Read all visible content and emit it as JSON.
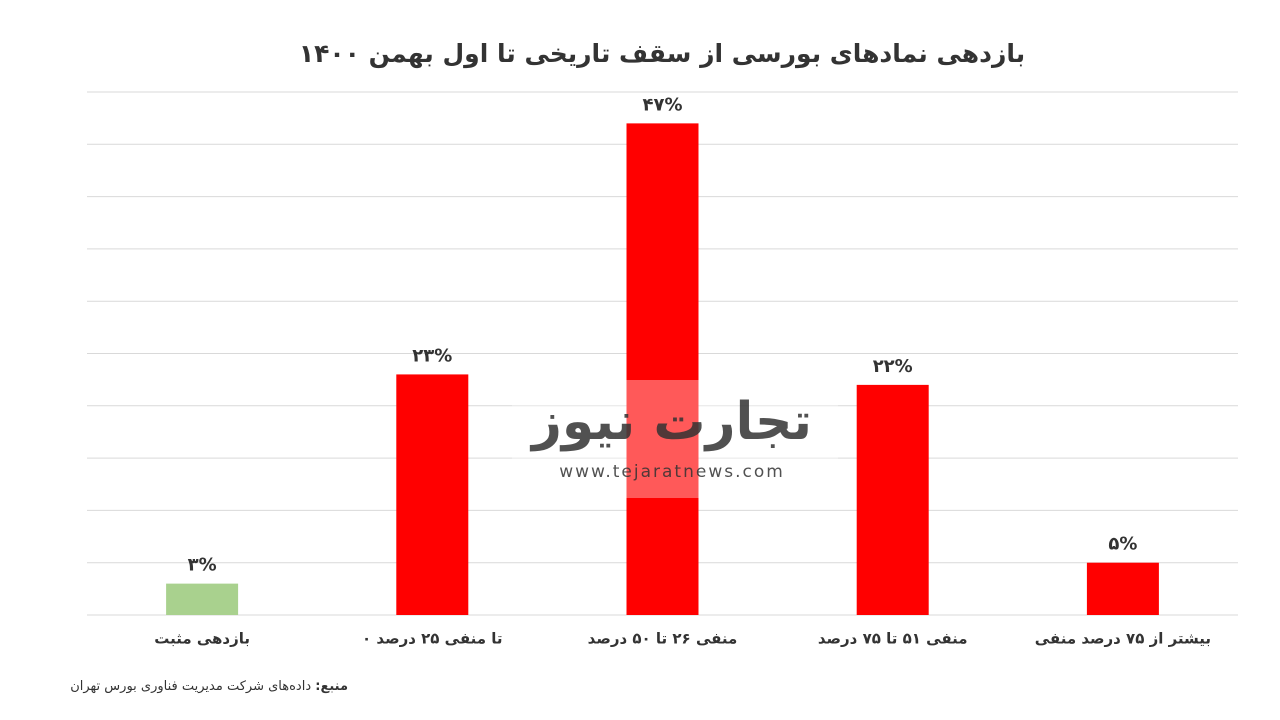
{
  "chart_data": {
    "type": "bar",
    "title": "بازدهی نمادهای بورسی از سقف تاریخی تا اول بهمن ۱۴۰۰",
    "categories": [
      "بازدهی مثبت",
      "۰ تا منفی ۲۵ درصد",
      "منفی ۲۶ تا ۵۰ درصد",
      "منفی ۵۱ تا ۷۵ درصد",
      "بیشتر از ۷۵ درصد منفی"
    ],
    "values": [
      3,
      23,
      47,
      22,
      5
    ],
    "value_labels": [
      "۳%",
      "۲۳%",
      "۴۷%",
      "۲۲%",
      "۵%"
    ],
    "colors": [
      "#a9d18e",
      "#ff0000",
      "#ff0000",
      "#ff0000",
      "#ff0000"
    ],
    "ylim": [
      0,
      50
    ],
    "yticks": [
      0,
      5,
      10,
      15,
      20,
      25,
      30,
      35,
      40,
      45,
      50
    ],
    "grid": true,
    "source": {
      "label": "منبع:",
      "text": "داده‌های شرکت مدیریت فناوری بورس تهران"
    },
    "watermark": {
      "brand": "تجارت نیوز",
      "url": "www.tejaratnews.com"
    }
  }
}
